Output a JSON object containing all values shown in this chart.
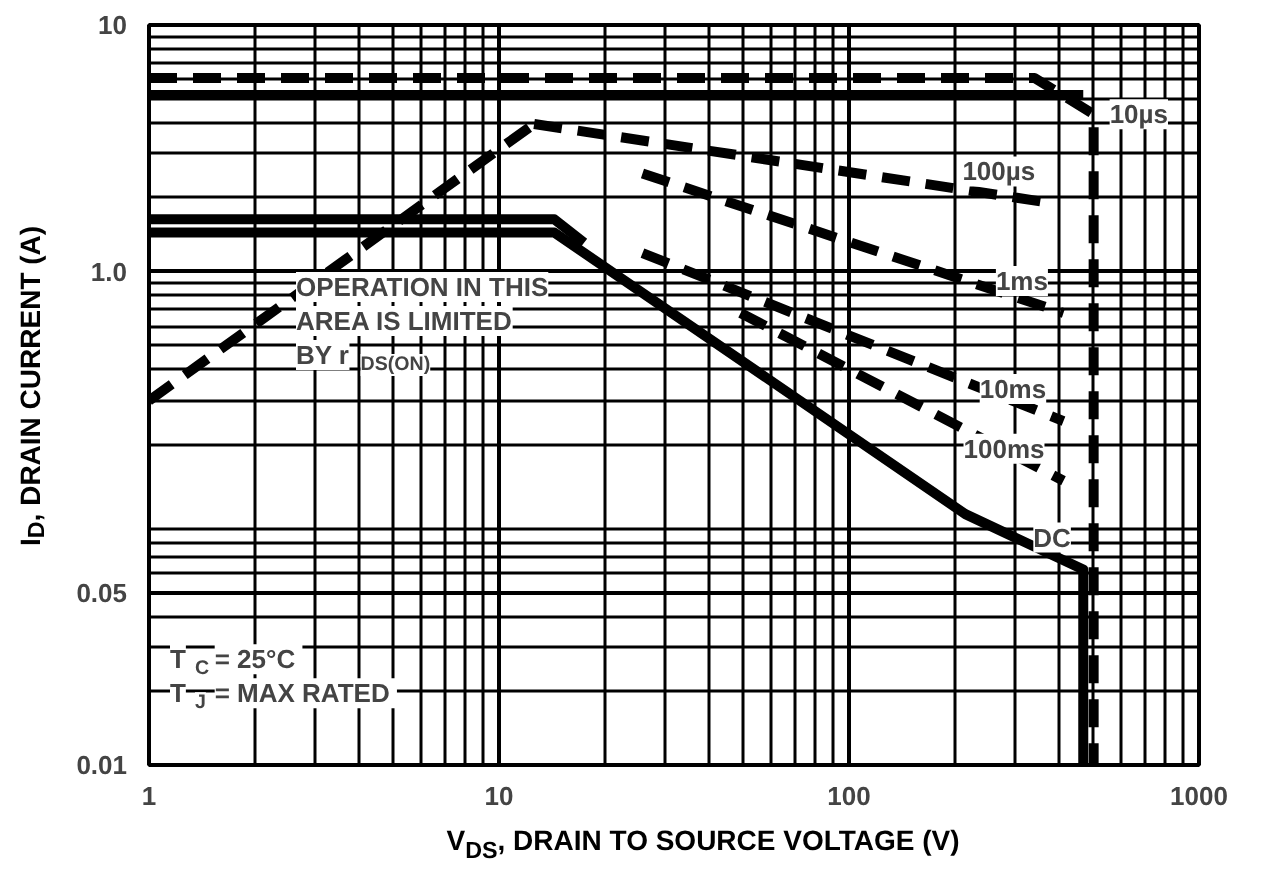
{
  "chart_data": {
    "type": "line",
    "xlabel": "V$_{DS}$, DRAIN TO SOURCE VOLTAGE (V)",
    "ylabel": "I$_{D}$, DRAIN CURRENT (A)",
    "log": "xy",
    "xlim": [
      1,
      1000
    ],
    "ylim": [
      0.01,
      10
    ],
    "xticks": [
      1,
      10,
      100,
      1000
    ],
    "yticks": [
      0.01,
      0.05,
      {
        "value": 1,
        "label": "1.0"
      },
      10
    ],
    "grid": true,
    "series": [
      {
        "name": "10µs",
        "color": "#000000",
        "line_style": "dashed",
        "x": [
          1,
          339,
          500,
          500
        ],
        "values": [
          6.1,
          6.1,
          4.35,
          0.01
        ]
      },
      {
        "color": "#000000",
        "line_style": "solid",
        "x": [
          1,
          467
        ],
        "values": [
          5.2,
          5.2
        ]
      },
      {
        "color": "#000000",
        "line_style": "dashed",
        "x": [
          1,
          12.6
        ],
        "values": [
          0.3,
          3.97
        ]
      },
      {
        "name": "100µs",
        "color": "#000000",
        "line_style": "dashed",
        "x": [
          12.6,
          385
        ],
        "values": [
          3.97,
          1.89
        ]
      },
      {
        "name": "1ms",
        "color": "#000000",
        "line_style": "dashed",
        "x": [
          25.7,
          410
        ],
        "values": [
          2.5,
          0.68
        ]
      },
      {
        "name": "10ms",
        "color": "#000000",
        "line_style": "dashed",
        "x": [
          25.7,
          410
        ],
        "values": [
          1.19,
          0.248
        ]
      },
      {
        "name": "100ms",
        "color": "#000000",
        "line_style": "dashed",
        "x": [
          49,
          410
        ],
        "values": [
          0.68,
          0.142
        ]
      },
      {
        "name": "DC",
        "color": "#000000",
        "line_style": "solid",
        "x": [
          1,
          14.4,
          215,
          467,
          467
        ],
        "values": [
          1.44,
          1.44,
          0.104,
          0.062,
          0.01
        ]
      },
      {
        "color": "#000000",
        "line_style": "solid",
        "x": [
          1,
          14.4,
          17.5
        ],
        "values": [
          1.63,
          1.63,
          1.31
        ]
      }
    ],
    "annotations": [
      "OPERATION IN THIS\nAREA IS LIMITED\nBY r$_{DS(ON)}$",
      "T$_{C}$ = 25°C\nT$_{J}$ = MAX RATED"
    ]
  }
}
